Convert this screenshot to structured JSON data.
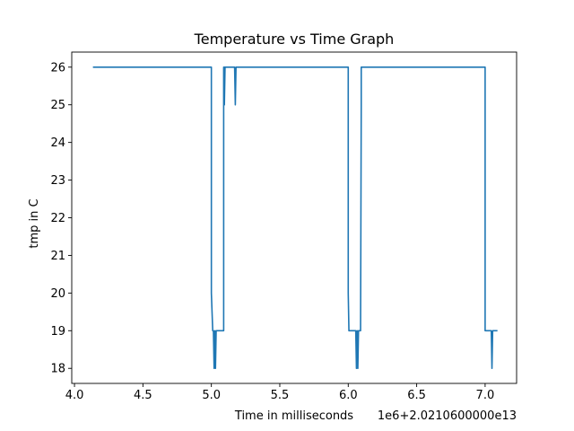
{
  "chart_data": {
    "type": "line",
    "title": "Temperature vs Time Graph",
    "xlabel": "Time in milliseconds",
    "ylabel": "tmp in C",
    "x_offset_label": "1e6+2.0210600000e13",
    "xlim": [
      3.98,
      7.23
    ],
    "ylim": [
      17.6,
      26.4
    ],
    "x_ticks": [
      4.0,
      4.5,
      5.0,
      5.5,
      6.0,
      6.5,
      7.0
    ],
    "x_tick_labels": [
      "4.0",
      "4.5",
      "5.0",
      "5.5",
      "6.0",
      "6.5",
      "7.0"
    ],
    "y_ticks": [
      18,
      19,
      20,
      21,
      22,
      23,
      24,
      25,
      26
    ],
    "y_tick_labels": [
      "18",
      "19",
      "20",
      "21",
      "22",
      "23",
      "24",
      "25",
      "26"
    ],
    "grid": false,
    "colors": {
      "line": "#1f77b4"
    },
    "series": [
      {
        "x": [
          4.14,
          5.0,
          5.0,
          5.01,
          5.01,
          5.015,
          5.02,
          5.025,
          5.03,
          5.035,
          5.09,
          5.09,
          5.095,
          5.095,
          5.1,
          5.1,
          5.16,
          5.17,
          5.175,
          5.18,
          5.18,
          6.0,
          6.0,
          6.005,
          6.005,
          6.01,
          6.055,
          6.06,
          6.065,
          6.07,
          6.075,
          6.09,
          6.095,
          6.095,
          6.1,
          6.1,
          7.0,
          7.0,
          7.045,
          7.05,
          7.055,
          7.06,
          7.085
        ],
        "y": [
          26,
          26,
          20,
          19,
          19,
          19,
          18,
          19,
          18,
          19,
          19,
          26,
          26,
          25,
          26,
          26,
          26,
          26,
          25,
          26,
          26,
          26,
          20,
          19,
          19,
          19,
          19,
          18,
          19,
          18,
          19,
          19,
          25,
          26,
          26,
          26,
          26,
          19,
          19,
          18,
          19,
          19,
          19
        ]
      }
    ]
  }
}
